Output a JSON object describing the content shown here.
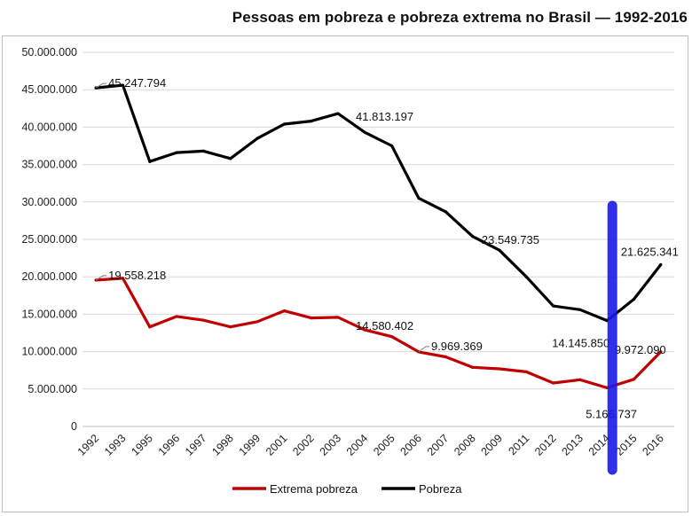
{
  "chart_data": {
    "type": "line",
    "title": "Pessoas em pobreza e pobreza extrema no Brasil — 1992-2016",
    "categories": [
      "1992",
      "1993",
      "1995",
      "1996",
      "1997",
      "1998",
      "1999",
      "2001",
      "2002",
      "2003",
      "2004",
      "2005",
      "2006",
      "2007",
      "2008",
      "2009",
      "2011",
      "2012",
      "2013",
      "2014",
      "2015",
      "2016"
    ],
    "series": [
      {
        "name": "Extrema pobreza",
        "color": "#c00000",
        "values": [
          19558218,
          19800000,
          13300000,
          14700000,
          14200000,
          13300000,
          14000000,
          15450000,
          14500000,
          14580402,
          12900000,
          12000000,
          9969369,
          9300000,
          7900000,
          7700000,
          7300000,
          5800000,
          6250000,
          5166737,
          6300000,
          9972090
        ]
      },
      {
        "name": "Pobreza",
        "color": "#000000",
        "values": [
          45247794,
          45600000,
          35400000,
          36600000,
          36800000,
          35800000,
          38500000,
          40400000,
          40800000,
          41813197,
          39300000,
          37500000,
          30500000,
          28700000,
          25400000,
          23549735,
          20000000,
          16100000,
          15600000,
          14145850,
          17000000,
          21625341
        ]
      }
    ],
    "ylim": [
      0,
      50000000
    ],
    "yticks": [
      "0",
      "5.000.000",
      "10.000.000",
      "15.000.000",
      "20.000.000",
      "25.000.000",
      "30.000.000",
      "35.000.000",
      "40.000.000",
      "45.000.000",
      "50.000.000"
    ],
    "ytick_values": [
      0,
      5000000,
      10000000,
      15000000,
      20000000,
      25000000,
      30000000,
      35000000,
      40000000,
      45000000,
      50000000
    ],
    "xlabel": "",
    "ylabel": "",
    "grid": true,
    "legend_position": "bottom",
    "annotations": [
      {
        "series": 1,
        "index": 0,
        "text": "45.247.794"
      },
      {
        "series": 1,
        "index": 9,
        "text": "41.813.197"
      },
      {
        "series": 1,
        "index": 15,
        "text": "23.549.735"
      },
      {
        "series": 1,
        "index": 19,
        "text": "14.145.850"
      },
      {
        "series": 1,
        "index": 21,
        "text": "21.625.341"
      },
      {
        "series": 0,
        "index": 0,
        "text": "19.558.218"
      },
      {
        "series": 0,
        "index": 9,
        "text": "14.580.402"
      },
      {
        "series": 0,
        "index": 12,
        "text": "9.969.369"
      },
      {
        "series": 0,
        "index": 19,
        "text": "5.166.737"
      },
      {
        "series": 0,
        "index": 21,
        "text": "9.972.090"
      }
    ],
    "highlight": {
      "category": "2014",
      "color": "#1a1ae6",
      "description": "vertical blue marker"
    }
  }
}
